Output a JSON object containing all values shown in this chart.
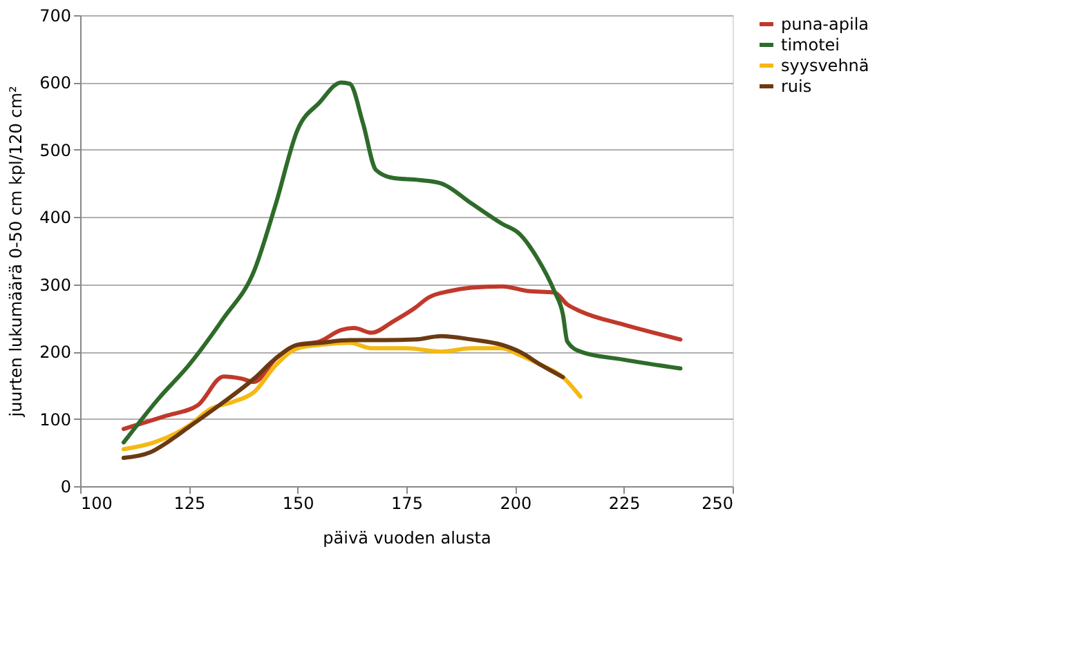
{
  "chart_data": {
    "type": "line",
    "xlabel": "päivä vuoden alusta",
    "ylabel": "juurten lukumäärä 0-50 cm kpl/120 cm²",
    "xlim": [
      100,
      250
    ],
    "xticks": [
      100,
      125,
      150,
      175,
      200,
      225,
      250
    ],
    "ylim": [
      0,
      700
    ],
    "yticks": [
      0,
      100,
      200,
      300,
      400,
      500,
      600,
      700
    ],
    "grid": "y",
    "legend": "right",
    "marker": "none",
    "line_style": "solid",
    "series": [
      {
        "name": "puna-apila",
        "color": "#c0392b",
        "x": [
          110,
          120,
          127,
          133,
          137,
          140,
          145,
          150,
          155,
          160,
          163,
          167,
          172,
          177,
          180,
          185,
          190,
          197,
          203,
          209,
          212,
          215,
          225,
          238
        ],
        "values": [
          85,
          105,
          120,
          163,
          160,
          155,
          190,
          210,
          215,
          232,
          235,
          228,
          245,
          265,
          280,
          290,
          295,
          297,
          290,
          288,
          270,
          260,
          240,
          218
        ]
      },
      {
        "name": "timotei",
        "color": "#2e6b2a",
        "x": [
          110,
          118,
          125,
          133,
          140,
          145,
          150,
          155,
          160,
          162,
          165,
          168,
          172,
          178,
          183,
          190,
          197,
          201,
          205,
          209,
          211,
          212,
          215,
          225,
          238
        ],
        "values": [
          65,
          130,
          180,
          250,
          320,
          420,
          530,
          570,
          600,
          598,
          540,
          470,
          458,
          455,
          450,
          420,
          390,
          375,
          340,
          290,
          255,
          215,
          200,
          188,
          175
        ]
      },
      {
        "name": "syysvehnä",
        "color": "#f5b914",
        "x": [
          110,
          117,
          125,
          130,
          135,
          140,
          145,
          150,
          155,
          162,
          167,
          175,
          183,
          190,
          197,
          201,
          206,
          211,
          215
        ],
        "values": [
          55,
          65,
          90,
          115,
          125,
          140,
          180,
          205,
          210,
          213,
          205,
          205,
          200,
          205,
          205,
          195,
          180,
          162,
          133
        ]
      },
      {
        "name": "ruis",
        "color": "#6b3a12",
        "x": [
          110,
          116,
          120,
          125,
          133,
          140,
          145,
          150,
          155,
          162,
          170,
          177,
          183,
          190,
          197,
          201,
          206,
          211
        ],
        "values": [
          42,
          50,
          65,
          88,
          125,
          160,
          190,
          210,
          213,
          217,
          217,
          218,
          223,
          218,
          210,
          200,
          180,
          162
        ]
      }
    ]
  }
}
